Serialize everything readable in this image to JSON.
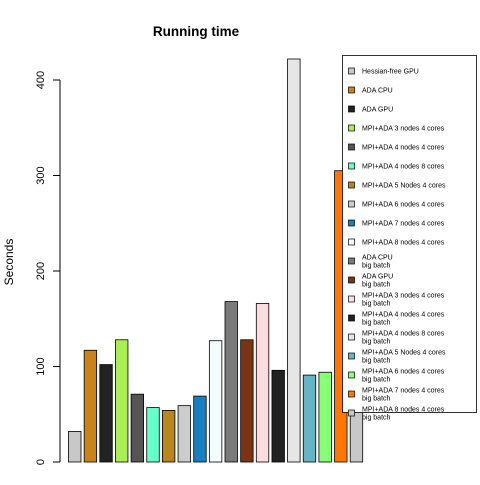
{
  "chart_data": {
    "type": "bar",
    "title": "Running time",
    "xlabel": "",
    "ylabel": "Seconds",
    "ylim": [
      0,
      420
    ],
    "yticks": [
      0,
      100,
      200,
      300,
      400
    ],
    "grid": false,
    "legend_position": "right",
    "series": [
      {
        "name": "Hessian-free GPU",
        "value": 32,
        "color": "#c8c8c8"
      },
      {
        "name": "ADA CPU",
        "value": 117,
        "color": "#c8841a"
      },
      {
        "name": "ADA GPU",
        "value": 102,
        "color": "#222222"
      },
      {
        "name": "MPI+ADA 3 nodes 4 cores",
        "value": 128,
        "color": "#aaee55"
      },
      {
        "name": "MPI+ADA 4 nodes 4 cores",
        "value": 71,
        "color": "#555555"
      },
      {
        "name": "MPI+ADA 4 nodes 8 cores",
        "value": 57,
        "color": "#66ffcc"
      },
      {
        "name": "MPI+ADA 5 Nodes 4 cores",
        "value": 54,
        "color": "#b8861c"
      },
      {
        "name": "MPI+ADA 6 nodes 4 cores",
        "value": 59,
        "color": "#cccccc"
      },
      {
        "name": "MPI+ADA 7 nodes 4 cores",
        "value": 69,
        "color": "#1a7fc0"
      },
      {
        "name": "MPI+ADA 8 nodes 4 cores",
        "value": 127,
        "color": "#f2fcfc"
      },
      {
        "name": "ADA CPU\nbig batch",
        "value": 168,
        "color": "#7a7a7a"
      },
      {
        "name": "ADA GPU\nbig batch",
        "value": 128,
        "color": "#7a3412"
      },
      {
        "name": "MPI+ADA 3 nodes 4 cores\nbig batch",
        "value": 166,
        "color": "#fcdcdc"
      },
      {
        "name": "MPI+ADA 4 nodes 4 cores\nbig batch",
        "value": 96,
        "color": "#222222"
      },
      {
        "name": "MPI+ADA 4 nodes 8 cores\nbig batch",
        "value": 422,
        "color": "#e6e6e6"
      },
      {
        "name": "MPI+ADA 5 Nodes 4 cores\nbig batch",
        "value": 91,
        "color": "#66b4c6"
      },
      {
        "name": "MPI+ADA 6 nodes 4 cores\nbig batch",
        "value": 94,
        "color": "#88ff77"
      },
      {
        "name": "MPI+ADA 7 nodes 4 cores\nbig batch",
        "value": 305,
        "color": "#ff7700"
      },
      {
        "name": "MPI+ADA 8 nodes 4 cores\nbig batch",
        "value": 104,
        "color": "#c8c8c8"
      }
    ]
  }
}
